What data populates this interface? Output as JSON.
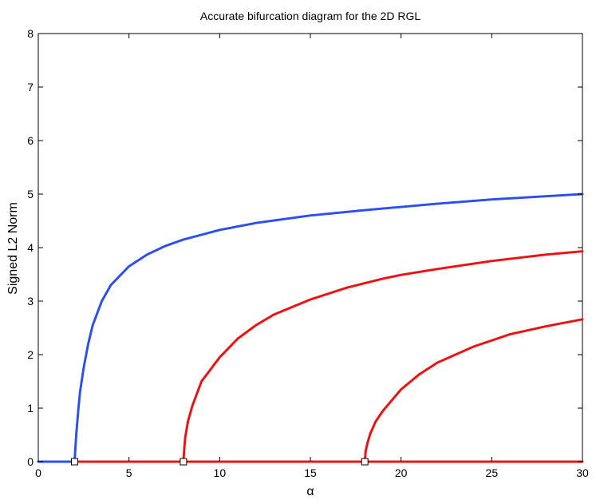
{
  "chart_data": {
    "type": "scatter",
    "title": "Accurate bifurcation diagram for the 2D RGL",
    "xlabel": "α",
    "ylabel": "Signed L2 Norm",
    "xlim": [
      0,
      30
    ],
    "ylim": [
      0,
      8
    ],
    "xticks": [
      0,
      5,
      10,
      15,
      20,
      25,
      30
    ],
    "yticks": [
      0,
      1,
      2,
      3,
      4,
      5,
      6,
      7,
      8
    ],
    "grid": false,
    "legend": "none",
    "series": [
      {
        "color": "#2b4ff0",
        "points": [
          [
            0,
            0
          ],
          [
            0.5,
            0
          ],
          [
            1,
            0
          ],
          [
            1.5,
            0
          ],
          [
            2,
            0
          ],
          [
            2.05,
            0.28
          ],
          [
            2.1,
            0.54
          ],
          [
            2.2,
            0.95
          ],
          [
            2.3,
            1.3
          ],
          [
            2.5,
            1.75
          ],
          [
            2.75,
            2.2
          ],
          [
            3,
            2.55
          ],
          [
            3.5,
            3.0
          ],
          [
            4,
            3.3
          ],
          [
            5,
            3.65
          ],
          [
            6,
            3.87
          ],
          [
            7,
            4.03
          ],
          [
            8,
            4.15
          ],
          [
            10,
            4.33
          ],
          [
            12,
            4.46
          ],
          [
            15,
            4.6
          ],
          [
            18,
            4.7
          ],
          [
            20,
            4.76
          ],
          [
            22,
            4.82
          ],
          [
            25,
            4.9
          ],
          [
            28,
            4.96
          ],
          [
            30,
            5.0
          ]
        ]
      },
      {
        "color": "#ee1111",
        "points": [
          [
            2,
            0
          ],
          [
            5,
            0
          ],
          [
            8,
            0
          ],
          [
            10,
            0
          ],
          [
            15,
            0
          ],
          [
            18,
            0
          ],
          [
            20,
            0
          ],
          [
            25,
            0
          ],
          [
            30,
            0
          ]
        ]
      },
      {
        "color": "#ee1111",
        "points": [
          [
            8,
            0
          ],
          [
            8.05,
            0.25
          ],
          [
            8.1,
            0.45
          ],
          [
            8.25,
            0.75
          ],
          [
            8.5,
            1.05
          ],
          [
            9,
            1.5
          ],
          [
            10,
            1.95
          ],
          [
            11,
            2.3
          ],
          [
            12,
            2.55
          ],
          [
            13,
            2.75
          ],
          [
            15,
            3.03
          ],
          [
            17,
            3.25
          ],
          [
            19,
            3.42
          ],
          [
            20,
            3.49
          ],
          [
            22,
            3.6
          ],
          [
            25,
            3.75
          ],
          [
            28,
            3.87
          ],
          [
            30,
            3.93
          ]
        ]
      },
      {
        "color": "#ee1111",
        "points": [
          [
            18,
            0
          ],
          [
            18.05,
            0.2
          ],
          [
            18.15,
            0.35
          ],
          [
            18.3,
            0.52
          ],
          [
            18.6,
            0.75
          ],
          [
            19,
            0.95
          ],
          [
            20,
            1.35
          ],
          [
            21,
            1.63
          ],
          [
            22,
            1.85
          ],
          [
            24,
            2.15
          ],
          [
            26,
            2.38
          ],
          [
            28,
            2.53
          ],
          [
            30,
            2.66
          ]
        ]
      }
    ],
    "markers": {
      "x": [
        2,
        8,
        18
      ],
      "y": [
        0,
        0,
        0
      ]
    }
  }
}
